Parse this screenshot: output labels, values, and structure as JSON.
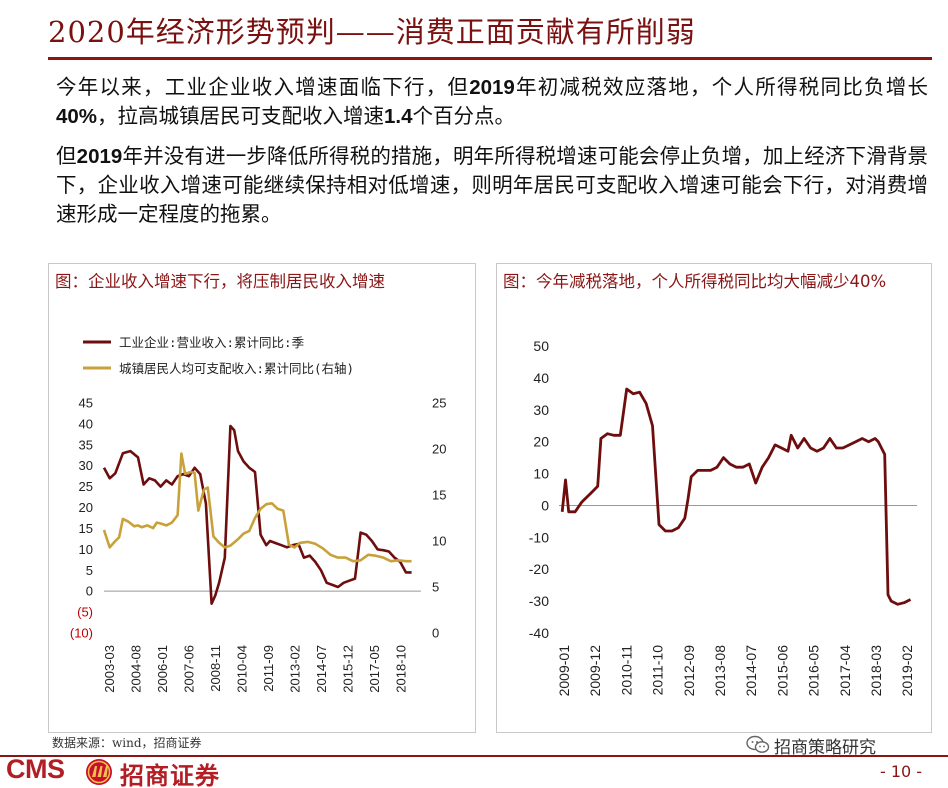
{
  "page": {
    "title": "2020年经济形势预判——消费正面贡献有所削弱",
    "para1": [
      {
        "t": "今年以来，工业企业收入增速面临下行，但"
      },
      {
        "t": "2019",
        "b": true
      },
      {
        "t": "年初减税效应落地，个人所得税同比负增长"
      },
      {
        "t": "40%",
        "b": true
      },
      {
        "t": "，拉高城镇居民可支配收入增速"
      },
      {
        "t": "1.4",
        "b": true
      },
      {
        "t": "个百分点。"
      }
    ],
    "para2": [
      {
        "t": "但"
      },
      {
        "t": "2019",
        "b": true
      },
      {
        "t": "年并没有进一步降低所得税的措施，明年所得税增速可能会停止负增，加上经济下滑背景下，企业收入增速可能继续保持相对低增速，则明年居民可支配收入增速可能会下行，对消费增速形成一定程度的拖累。"
      }
    ],
    "source": "数据来源：wind，招商证券",
    "logo_cms": "CMS",
    "logo_name": "招商证券",
    "wechat_label": "招商策略研究",
    "page_number": "- 10 -"
  },
  "left_chart_title": "图：企业收入增速下行，将压制居民收入增速",
  "right_chart_title": "图：今年减税落地，个人所得税同比均大幅减少40%",
  "colors": {
    "brand": "#8a1515",
    "series_dark": "#6e0d0d",
    "series_gold": "#c9a13b",
    "axis": "#555555"
  },
  "chart_data": [
    {
      "type": "line",
      "categories": [
        "2003-03",
        "2004-08",
        "2006-01",
        "2007-06",
        "2008-11",
        "2010-04",
        "2011-09",
        "2013-02",
        "2014-07",
        "2015-12",
        "2017-05",
        "2018-10"
      ],
      "ylim": [
        -10,
        45
      ],
      "y_ticks": [
        45,
        40,
        35,
        30,
        25,
        20,
        15,
        10,
        5,
        0,
        -5,
        -10
      ],
      "y_tick_labels": [
        "45",
        "40",
        "35",
        "30",
        "25",
        "20",
        "15",
        "10",
        "5",
        "0",
        "(5)",
        "(10)"
      ],
      "y2lim": [
        0,
        25
      ],
      "y2_ticks": [
        "25",
        "20",
        "15",
        "10",
        "5",
        "0"
      ],
      "legend_position": "top-left",
      "series": [
        {
          "name": "工业企业:营业收入:累计同比:季",
          "axis": "left",
          "x": [
            2003.2,
            2003.5,
            2003.8,
            2004.2,
            2004.6,
            2005.0,
            2005.3,
            2005.6,
            2005.9,
            2006.2,
            2006.5,
            2006.8,
            2007.1,
            2007.4,
            2007.7,
            2008.0,
            2008.3,
            2008.6,
            2008.9,
            2009.1,
            2009.3,
            2009.6,
            2009.9,
            2010.1,
            2010.3,
            2010.6,
            2010.9,
            2011.2,
            2011.5,
            2011.8,
            2012.0,
            2012.3,
            2012.6,
            2012.9,
            2013.2,
            2013.5,
            2013.8,
            2014.1,
            2014.4,
            2014.7,
            2015.0,
            2015.3,
            2015.6,
            2015.9,
            2016.2,
            2016.5,
            2016.8,
            2017.1,
            2017.4,
            2017.7,
            2018.0,
            2018.3,
            2018.6,
            2018.9,
            2019.2,
            2019.5
          ],
          "values": [
            29.5,
            27,
            28.2,
            33,
            33.5,
            32,
            25.5,
            27,
            26.5,
            25,
            26.5,
            25.5,
            27.5,
            28,
            27.5,
            29.5,
            28,
            21,
            -3,
            -1,
            2,
            8,
            39.5,
            38.5,
            33.5,
            31,
            29.5,
            28.5,
            13.5,
            11,
            12,
            11.5,
            11,
            10.5,
            11,
            11.3,
            8,
            8.5,
            7,
            5,
            2,
            1.5,
            1,
            2,
            2.5,
            3,
            14,
            13.5,
            12,
            10,
            9.8,
            9.5,
            8,
            7,
            4.5,
            4.5
          ]
        },
        {
          "name": "城镇居民人均可支配收入:累计同比(右轴)",
          "axis": "right",
          "x": [
            2003.2,
            2003.5,
            2003.8,
            2004.0,
            2004.2,
            2004.5,
            2004.8,
            2005.0,
            2005.2,
            2005.5,
            2005.8,
            2006.0,
            2006.2,
            2006.5,
            2006.8,
            2007.1,
            2007.3,
            2007.5,
            2007.8,
            2008.0,
            2008.2,
            2008.5,
            2008.7,
            2009.0,
            2009.3,
            2009.6,
            2009.9,
            2010.3,
            2010.6,
            2010.9,
            2011.2,
            2011.5,
            2011.8,
            2012.1,
            2012.4,
            2012.7,
            2013.0,
            2013.3,
            2013.6,
            2014.0,
            2014.4,
            2014.8,
            2015.2,
            2015.6,
            2016.0,
            2016.4,
            2016.8,
            2017.2,
            2017.6,
            2018.0,
            2018.4,
            2018.8,
            2019.2,
            2019.5
          ],
          "values": [
            11.2,
            9.3,
            10,
            10.4,
            12.4,
            12.1,
            11.6,
            11.7,
            11.5,
            11.7,
            11.4,
            12,
            11.9,
            11.7,
            12,
            12.8,
            19.5,
            17.3,
            17.5,
            17.4,
            13.3,
            15.6,
            15.8,
            10.5,
            9.8,
            9.3,
            9.5,
            10.2,
            10.8,
            11.1,
            12.5,
            13.5,
            14,
            14.1,
            13.5,
            13.3,
            9.6,
            9.3,
            9.8,
            9.9,
            9.7,
            9.2,
            8.5,
            8.2,
            8.2,
            7.8,
            7.9,
            8.5,
            8.4,
            8.2,
            7.8,
            7.9,
            7.8,
            7.8
          ]
        }
      ]
    },
    {
      "type": "line",
      "categories": [
        "2009-01",
        "2009-12",
        "2010-11",
        "2011-10",
        "2012-09",
        "2013-08",
        "2014-07",
        "2015-06",
        "2016-05",
        "2017-04",
        "2018-03",
        "2019-02"
      ],
      "ylim": [
        -40,
        50
      ],
      "y_ticks": [
        "50",
        "40",
        "30",
        "20",
        "10",
        "0",
        "-10",
        "-20",
        "-30",
        "-40"
      ],
      "series": [
        {
          "x": [
            2009.0,
            2009.1,
            2009.2,
            2009.4,
            2009.6,
            2009.9,
            2010.1,
            2010.2,
            2010.4,
            2010.6,
            2010.8,
            2011.0,
            2011.2,
            2011.4,
            2011.6,
            2011.8,
            2012.0,
            2012.2,
            2012.4,
            2012.6,
            2012.8,
            2012.9,
            2013.0,
            2013.2,
            2013.4,
            2013.6,
            2013.8,
            2014.0,
            2014.2,
            2014.4,
            2014.6,
            2014.8,
            2015.0,
            2015.2,
            2015.4,
            2015.6,
            2015.8,
            2016.0,
            2016.1,
            2016.3,
            2016.5,
            2016.7,
            2016.9,
            2017.1,
            2017.3,
            2017.5,
            2017.7,
            2017.9,
            2018.1,
            2018.3,
            2018.5,
            2018.7,
            2018.8,
            2019.0,
            2019.1,
            2019.2,
            2019.4,
            2019.6,
            2019.8
          ],
          "values": [
            -2,
            8,
            -2,
            -2,
            1,
            4,
            6,
            21,
            22.5,
            22,
            22,
            36.5,
            35,
            35.5,
            32,
            25,
            -6,
            -8,
            -8,
            -7,
            -4,
            2,
            9,
            11,
            11,
            11,
            12,
            15,
            13,
            12,
            12,
            13,
            7,
            12,
            15,
            19,
            18,
            17,
            22,
            18,
            21,
            18,
            17,
            18,
            21,
            18,
            18,
            19,
            20,
            21,
            20,
            21,
            20,
            16,
            -28,
            -30,
            -31,
            -30.5,
            -29.5
          ]
        }
      ]
    }
  ]
}
